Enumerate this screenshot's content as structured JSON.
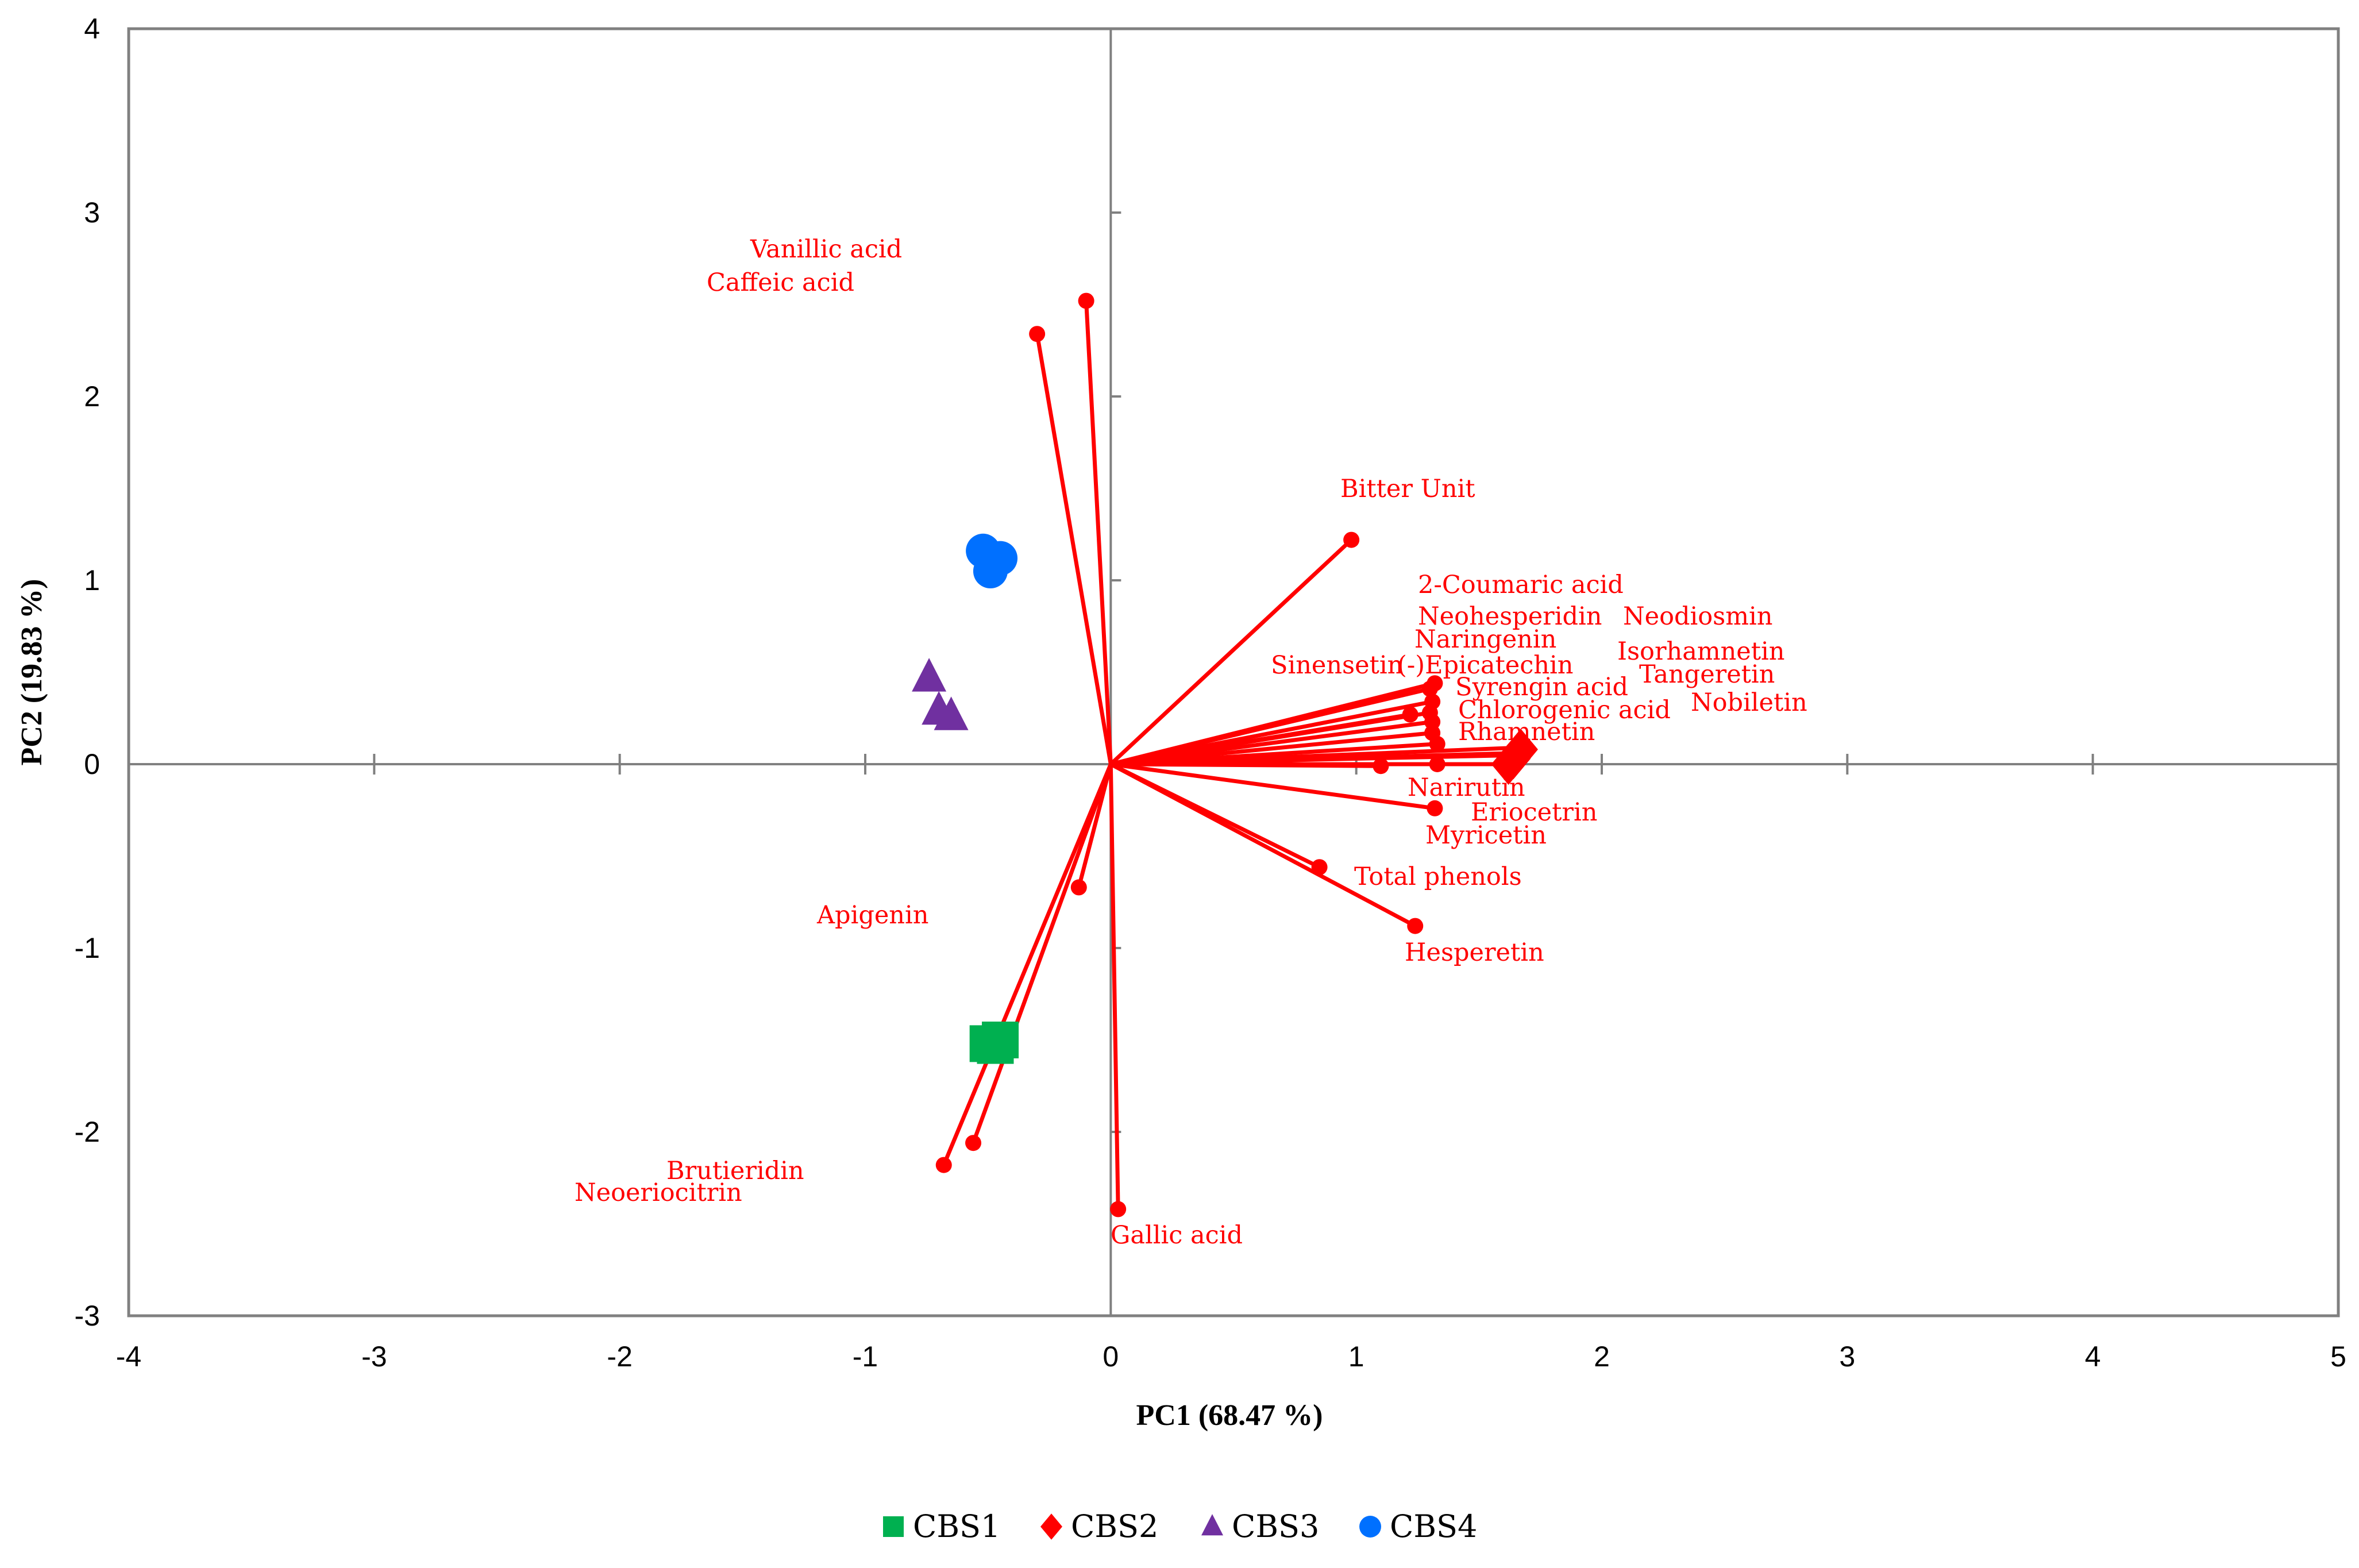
{
  "chart_data": {
    "type": "scatter",
    "xlabel": "PC1 (68.47 %)",
    "ylabel": "PC2 (19.83 %)",
    "xlim": [
      -4,
      5
    ],
    "ylim": [
      -3,
      4
    ],
    "x_ticks": [
      -4,
      -3,
      -2,
      -1,
      0,
      1,
      2,
      3,
      4,
      5
    ],
    "y_ticks": [
      -3,
      -2,
      -1,
      0,
      1,
      2,
      3,
      4
    ],
    "grid": false,
    "legend_position": "bottom-center",
    "colors": {
      "vector": "#ff0000",
      "axis": "#808080",
      "frame": "#808080"
    },
    "loadings": [
      {
        "name": "Vanillic acid",
        "x": -0.1,
        "y": 2.52
      },
      {
        "name": "Caffeic acid",
        "x": -0.3,
        "y": 2.34
      },
      {
        "name": "Bitter Unit",
        "x": 0.98,
        "y": 1.22
      },
      {
        "name": "2-Coumaric acid",
        "x": 1.32,
        "y": 0.44
      },
      {
        "name": "Neohesperidin",
        "x": 1.3,
        "y": 0.41
      },
      {
        "name": "Naringenin",
        "x": 1.31,
        "y": 0.34
      },
      {
        "name": "Sinensetin",
        "x": 1.22,
        "y": 0.27
      },
      {
        "name": "(-)Epicatechin",
        "x": 1.3,
        "y": 0.28
      },
      {
        "name": "Syrengin acid",
        "x": 1.31,
        "y": 0.23
      },
      {
        "name": "Chlorogenic acid",
        "x": 1.31,
        "y": 0.17
      },
      {
        "name": "Rhamnetin",
        "x": 1.33,
        "y": 0.11
      },
      {
        "name": "Neodiosmin",
        "x": 1.66,
        "y": 0.09
      },
      {
        "name": "Isorhamnetin",
        "x": 1.64,
        "y": 0.06
      },
      {
        "name": "Tangeretin",
        "x": 1.68,
        "y": 0.05
      },
      {
        "name": "Nobiletin",
        "x": 1.62,
        "y": 0.0
      },
      {
        "name": "Narirutin",
        "x": 1.33,
        "y": 0.0
      },
      {
        "name": "Myricetin",
        "x": 1.1,
        "y": -0.01
      },
      {
        "name": "Eriocetrin",
        "x": 1.32,
        "y": -0.24
      },
      {
        "name": "Total phenols",
        "x": 0.85,
        "y": -0.56
      },
      {
        "name": "Hesperetin",
        "x": 1.24,
        "y": -0.88
      },
      {
        "name": "Apigenin",
        "x": -0.13,
        "y": -0.67
      },
      {
        "name": "Brutieridin",
        "x": -0.56,
        "y": -2.06
      },
      {
        "name": "Neoeriocitrin",
        "x": -0.68,
        "y": -2.18
      },
      {
        "name": "Gallic acid",
        "x": 0.03,
        "y": -2.42
      }
    ],
    "series": [
      {
        "name": "CBS1",
        "marker": "square",
        "color": "#00b050",
        "points": [
          [
            -0.5,
            -1.52
          ],
          [
            -0.45,
            -1.5
          ],
          [
            -0.47,
            -1.53
          ]
        ]
      },
      {
        "name": "CBS2",
        "marker": "diamond",
        "color": "#ff0000",
        "points": [
          [
            1.67,
            0.08
          ],
          [
            1.64,
            0.03
          ],
          [
            1.62,
            0.0
          ]
        ]
      },
      {
        "name": "CBS3",
        "marker": "triangle",
        "color": "#7030a0",
        "points": [
          [
            -0.74,
            0.47
          ],
          [
            -0.7,
            0.29
          ],
          [
            -0.65,
            0.26
          ]
        ]
      },
      {
        "name": "CBS4",
        "marker": "circle",
        "color": "#0070ff",
        "points": [
          [
            -0.52,
            1.16
          ],
          [
            -0.45,
            1.12
          ],
          [
            -0.49,
            1.05
          ]
        ]
      }
    ]
  }
}
